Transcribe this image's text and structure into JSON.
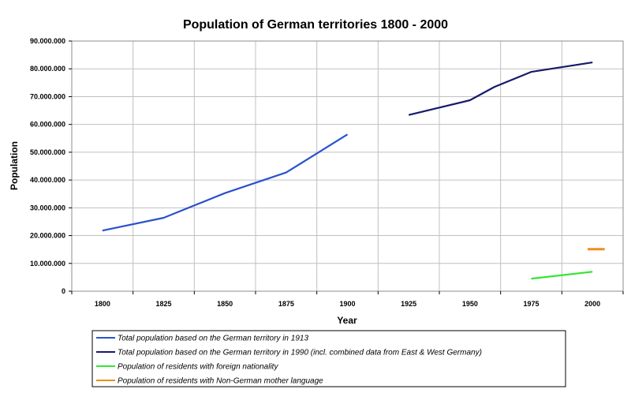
{
  "chart_data": {
    "type": "line",
    "title": "Population of German territories 1800 - 2000",
    "xlabel": "Year",
    "ylabel": "Population",
    "categories": [
      "1800",
      "1825",
      "1850",
      "1875",
      "1900",
      "1925",
      "1950",
      "1975",
      "2000"
    ],
    "y_ticks": [
      "0",
      "10.000.000",
      "20.000.000",
      "30.000.000",
      "40.000.000",
      "50.000.000",
      "60.000.000",
      "70.000.000",
      "80.000.000",
      "90.000.000"
    ],
    "ylim": [
      0,
      90000000
    ],
    "xlim": [
      1787.5,
      2012.5
    ],
    "grid": true,
    "legend_position": "bottom",
    "series": [
      {
        "name": "Total population based on the German territory in 1913",
        "color": "#2b52cc",
        "points": [
          [
            1800,
            21800000
          ],
          [
            1825,
            26400000
          ],
          [
            1850,
            35300000
          ],
          [
            1875,
            42700000
          ],
          [
            1900,
            56400000
          ]
        ]
      },
      {
        "name": "Total population based on the German territory in 1990 (incl. combined data from East & West Germany)",
        "color": "#151b6b",
        "points": [
          [
            1925,
            63400000
          ],
          [
            1950,
            68700000
          ],
          [
            1960,
            73500000
          ],
          [
            1975,
            78900000
          ],
          [
            2000,
            82300000
          ]
        ]
      },
      {
        "name": "Population of residents with foreign nationality",
        "color": "#33e633",
        "points": [
          [
            1975,
            4500000
          ],
          [
            2000,
            7000000
          ]
        ]
      },
      {
        "name": "Population of residents with Non-German mother language",
        "color": "#f08c1e",
        "points": [
          [
            1998,
            15100000
          ],
          [
            2005,
            15100000
          ]
        ]
      }
    ]
  }
}
